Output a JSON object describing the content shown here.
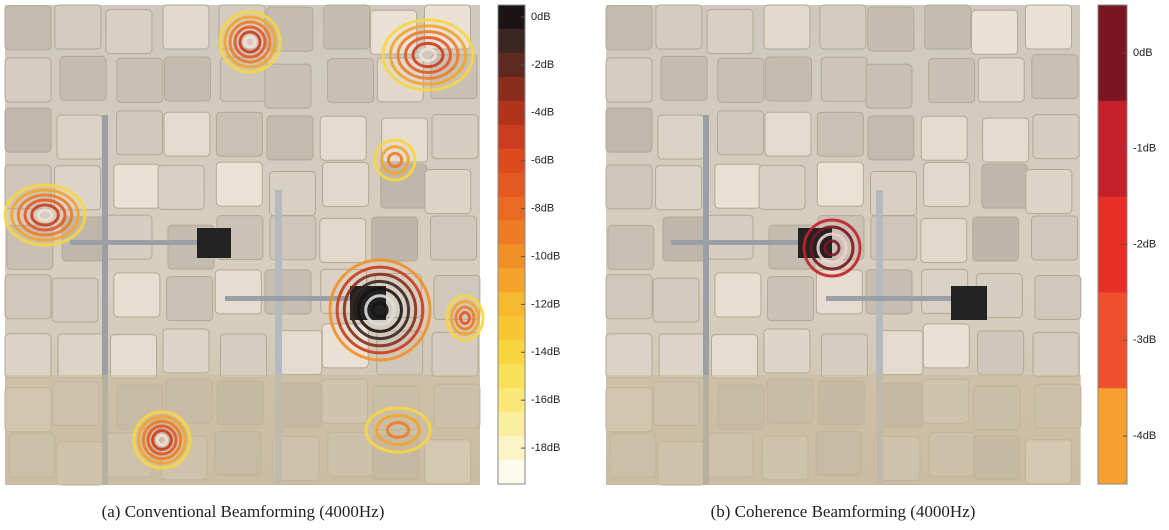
{
  "panels": [
    {
      "caption": "(a) Conventional Beamforming (4000Hz)",
      "colorbar": {
        "labels": [
          "0dB",
          "-2dB",
          "-4dB",
          "-6dB",
          "-8dB",
          "-10dB",
          "-12dB",
          "-14dB",
          "-16dB",
          "-18dB"
        ],
        "colors": [
          "#1a1414",
          "#3a2622",
          "#5e2a20",
          "#8a2e1c",
          "#b0341c",
          "#cc3c1e",
          "#dc4a20",
          "#e45822",
          "#ea6a24",
          "#ee7c26",
          "#f29028",
          "#f4a42a",
          "#f6b82e",
          "#f8c834",
          "#f8d640",
          "#f8e05a",
          "#f9e878",
          "#faeea0",
          "#fbf4c6",
          "#fcfbee"
        ]
      }
    },
    {
      "caption": "(b) Coherence Beamforming (4000Hz)",
      "colorbar": {
        "labels": [
          "0dB",
          "-1dB",
          "-2dB",
          "-3dB",
          "-4dB"
        ],
        "colors": [
          "#7a1522",
          "#c4202a",
          "#e82d26",
          "#ef4f2d",
          "#f6a12f"
        ]
      }
    }
  ]
}
